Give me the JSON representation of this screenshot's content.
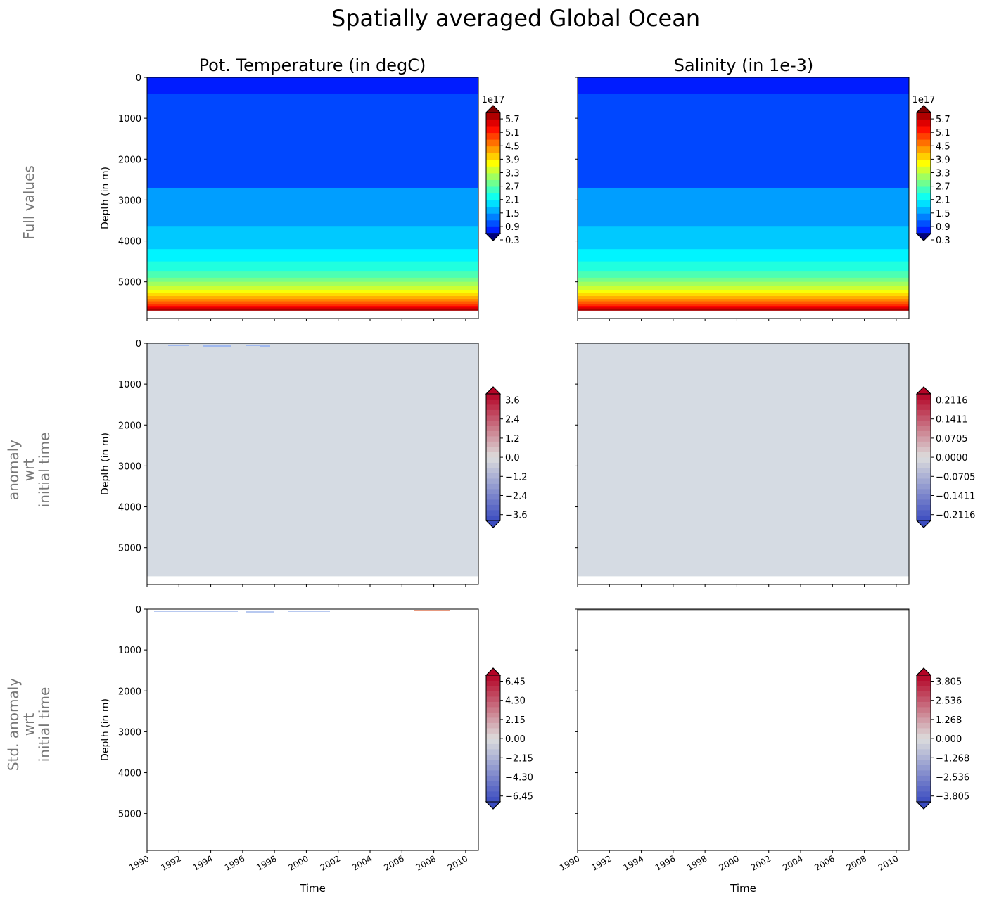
{
  "title": "Spatially averaged Global Ocean",
  "column_titles": [
    "Pot. Temperature (in degC)",
    "Salinity (in 1e-3)"
  ],
  "row_labels": [
    [
      "Full values"
    ],
    [
      "anomaly",
      "wrt",
      "initial time"
    ],
    [
      "Std. anomaly",
      "wrt",
      "initial time"
    ]
  ],
  "chart_data": [
    {
      "type": "heatmap",
      "row": 0,
      "col": 0,
      "ylabel": "Depth (in m)",
      "xlabel": "",
      "ylim": [
        5900,
        0
      ],
      "xlim": [
        1990,
        2010.8
      ],
      "colormap": "jet",
      "colorbar_multiplier": "1e17",
      "colorbar_ticks": [
        "0.3",
        "0.9",
        "1.5",
        "2.1",
        "2.7",
        "3.3",
        "3.9",
        "4.5",
        "5.1",
        "5.7"
      ],
      "colorbar_range": [
        0.3,
        5.7
      ],
      "depth_bands": [
        [
          0,
          400,
          0.0
        ],
        [
          400,
          2700,
          0.3
        ],
        [
          2700,
          3650,
          0.9
        ],
        [
          3650,
          4200,
          1.2
        ],
        [
          4200,
          4500,
          1.5
        ],
        [
          4500,
          4750,
          1.8
        ],
        [
          4750,
          4900,
          2.1
        ],
        [
          4900,
          5000,
          2.4
        ],
        [
          5000,
          5100,
          2.7
        ],
        [
          5100,
          5200,
          3.0
        ],
        [
          5200,
          5280,
          3.3
        ],
        [
          5280,
          5350,
          3.6
        ],
        [
          5350,
          5420,
          3.9
        ],
        [
          5420,
          5480,
          4.2
        ],
        [
          5480,
          5540,
          4.5
        ],
        [
          5540,
          5590,
          4.8
        ],
        [
          5590,
          5630,
          5.1
        ],
        [
          5630,
          5660,
          5.4
        ],
        [
          5660,
          5700,
          5.7
        ]
      ]
    },
    {
      "type": "heatmap",
      "row": 0,
      "col": 1,
      "ylim": [
        5900,
        0
      ],
      "xlim": [
        1990,
        2010.8
      ],
      "colormap": "jet",
      "colorbar_multiplier": "1e17",
      "colorbar_ticks": [
        "0.3",
        "0.9",
        "1.5",
        "2.1",
        "2.7",
        "3.3",
        "3.9",
        "4.5",
        "5.1",
        "5.7"
      ],
      "colorbar_range": [
        0.3,
        5.7
      ],
      "depth_bands": [
        [
          0,
          400,
          0.0
        ],
        [
          400,
          2700,
          0.3
        ],
        [
          2700,
          3650,
          0.9
        ],
        [
          3650,
          4200,
          1.2
        ],
        [
          4200,
          4500,
          1.5
        ],
        [
          4500,
          4750,
          1.8
        ],
        [
          4750,
          4900,
          2.1
        ],
        [
          4900,
          5000,
          2.4
        ],
        [
          5000,
          5100,
          2.7
        ],
        [
          5100,
          5200,
          3.0
        ],
        [
          5200,
          5280,
          3.3
        ],
        [
          5280,
          5350,
          3.6
        ],
        [
          5350,
          5420,
          3.9
        ],
        [
          5420,
          5480,
          4.2
        ],
        [
          5480,
          5540,
          4.5
        ],
        [
          5540,
          5590,
          4.8
        ],
        [
          5590,
          5630,
          5.1
        ],
        [
          5630,
          5660,
          5.4
        ],
        [
          5660,
          5700,
          5.7
        ]
      ]
    },
    {
      "type": "heatmap",
      "row": 1,
      "col": 0,
      "ylabel": "Depth (in m)",
      "ylim": [
        5900,
        0
      ],
      "xlim": [
        1990,
        2010.8
      ],
      "colormap": "coolwarm",
      "colorbar_ticks": [
        "3.6",
        "2.4",
        "1.2",
        "0.0",
        "−1.2",
        "−2.4",
        "−3.6"
      ],
      "fill_value": 0.0,
      "max_depth": 5700
    },
    {
      "type": "heatmap",
      "row": 1,
      "col": 1,
      "ylim": [
        5900,
        0
      ],
      "xlim": [
        1990,
        2010.8
      ],
      "colormap": "coolwarm",
      "colorbar_ticks": [
        "0.2116",
        "0.1411",
        "0.0705",
        "0.0000",
        "−0.0705",
        "−0.1411",
        "−0.2116"
      ],
      "fill_value": 0.0,
      "max_depth": 5700
    },
    {
      "type": "heatmap",
      "row": 2,
      "col": 0,
      "ylabel": "Depth (in m)",
      "xlabel": "Time",
      "ylim": [
        5900,
        0
      ],
      "xlim": [
        1990,
        2010.8
      ],
      "colormap": "coolwarm",
      "colorbar_ticks": [
        "6.45",
        "4.30",
        "2.15",
        "0.00",
        "−2.15",
        "−4.30",
        "−6.45"
      ],
      "fill_value": null
    },
    {
      "type": "heatmap",
      "row": 2,
      "col": 1,
      "xlabel": "Time",
      "ylim": [
        5900,
        0
      ],
      "xlim": [
        1990,
        2010.8
      ],
      "colormap": "coolwarm",
      "colorbar_ticks": [
        "3.805",
        "2.536",
        "1.268",
        "0.000",
        "−1.268",
        "−2.536",
        "−3.805"
      ],
      "fill_value": null
    }
  ],
  "yticks": [
    "0",
    "1000",
    "2000",
    "3000",
    "4000",
    "5000"
  ],
  "xticks": [
    "1990",
    "1992",
    "1994",
    "1996",
    "1998",
    "2000",
    "2002",
    "2004",
    "2006",
    "2008",
    "2010"
  ]
}
